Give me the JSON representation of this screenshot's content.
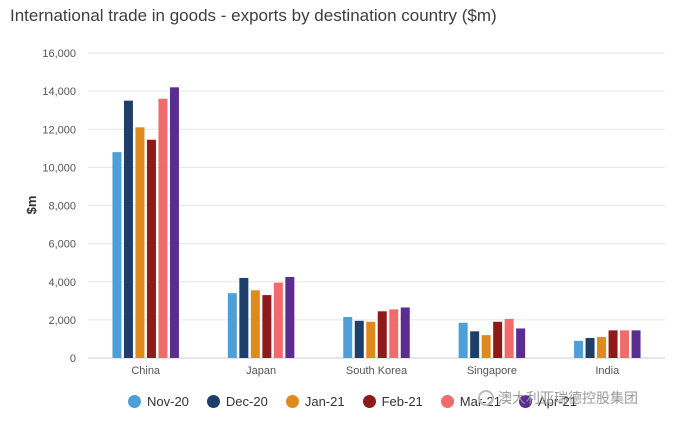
{
  "chart_data": {
    "type": "bar",
    "title": "International trade in goods - exports by destination country ($m)",
    "xlabel": "",
    "ylabel": "$m",
    "ylim": [
      0,
      16000
    ],
    "yticks": [
      0,
      2000,
      4000,
      6000,
      8000,
      10000,
      12000,
      14000,
      16000
    ],
    "ytick_labels": [
      "0",
      "2,000",
      "4,000",
      "6,000",
      "8,000",
      "10,000",
      "12,000",
      "14,000",
      "16,000"
    ],
    "grid": true,
    "legend_position": "bottom",
    "categories": [
      "China",
      "Japan",
      "South Korea",
      "Singapore",
      "India"
    ],
    "series": [
      {
        "name": "Nov-20",
        "color": "#4e9fd6",
        "values": [
          10800,
          3400,
          2150,
          1850,
          900
        ]
      },
      {
        "name": "Dec-20",
        "color": "#1f3f6b",
        "values": [
          13500,
          4200,
          1950,
          1400,
          1050
        ]
      },
      {
        "name": "Jan-21",
        "color": "#e08a1e",
        "values": [
          12100,
          3550,
          1900,
          1200,
          1100
        ]
      },
      {
        "name": "Feb-21",
        "color": "#8e1a1a",
        "values": [
          11450,
          3300,
          2450,
          1900,
          1450
        ]
      },
      {
        "name": "Mar-21",
        "color": "#f06b6b",
        "values": [
          13600,
          3950,
          2550,
          2050,
          1450
        ]
      },
      {
        "name": "Apr-21",
        "color": "#5b2d8e",
        "values": [
          14200,
          4250,
          2650,
          1550,
          1450
        ]
      }
    ]
  },
  "watermark": {
    "text": "澳大利亚瑞德控股集团",
    "icon": "wechat-icon"
  }
}
